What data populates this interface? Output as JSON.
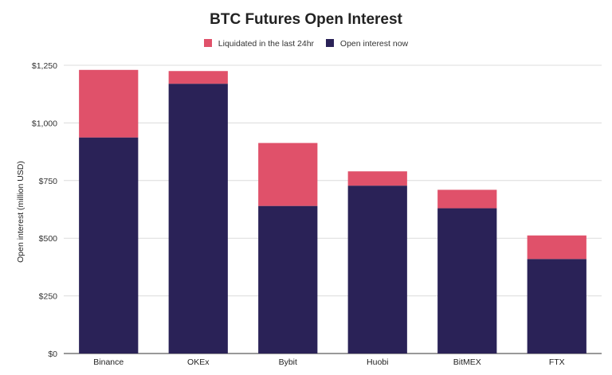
{
  "chart_data": {
    "type": "bar",
    "stacked": true,
    "title": "BTC Futures Open Interest",
    "ylabel": "Open interest (million USD)",
    "xlabel": "",
    "categories": [
      "Binance",
      "OKEx",
      "Bybit",
      "Huobi",
      "BitMEX",
      "FTX"
    ],
    "series": [
      {
        "name": "Open interest now",
        "color": "#2a2257",
        "values": [
          937,
          1170,
          640,
          728,
          630,
          410
        ]
      },
      {
        "name": "Liquidated in the last 24hr",
        "color": "#e0516a",
        "values": [
          293,
          55,
          273,
          62,
          80,
          102
        ]
      }
    ],
    "legend_order": [
      1,
      0
    ],
    "legend_position": "top",
    "ylim": [
      0,
      1250
    ],
    "yticks": [
      0,
      250,
      500,
      750,
      1000,
      1250
    ],
    "ytick_labels": [
      "$0",
      "$250",
      "$500",
      "$750",
      "$1,000",
      "$1,250"
    ],
    "grid": true
  }
}
